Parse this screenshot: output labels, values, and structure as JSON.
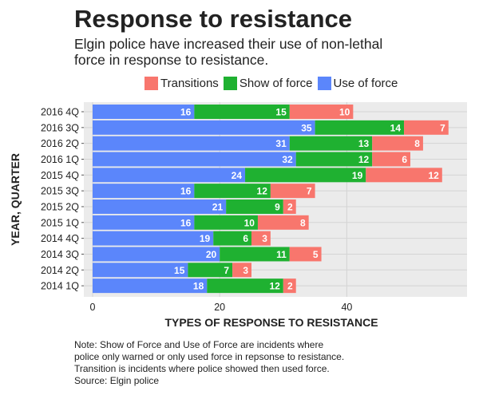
{
  "header": {
    "title": "Response to resistance",
    "subtitle": "Elgin police have increased their use of non-lethal force in response to resistance."
  },
  "colors": {
    "transitions": "#F8766D",
    "show_of_force": "#1FB131",
    "use_of_force": "#5B86FB",
    "panel_bg": "#EBEBEB",
    "grid": "#D4D4D4"
  },
  "legend": {
    "items": [
      {
        "label": "Transitions",
        "color": "#F8766D"
      },
      {
        "label": "Show of force",
        "color": "#1FB131"
      },
      {
        "label": "Use of force",
        "color": "#5B86FB"
      }
    ]
  },
  "note": {
    "lines": [
      "Note: Show of Force and Use of Force are incidents where",
      "police only warned or only used force in repsonse to resistance.",
      "Transition is incidents where police showed then used force.",
      "Source: Elgin police"
    ]
  },
  "chart_data": {
    "type": "bar",
    "orientation": "horizontal",
    "stacked": true,
    "title": "Response to resistance",
    "xlabel": "TYPES OF RESPONSE TO RESISTANCE",
    "ylabel": "YEAR, QUARTER",
    "xlim": [
      0,
      58
    ],
    "xticks": [
      0,
      20,
      40
    ],
    "grid": true,
    "legend_position": "top",
    "categories": [
      "2016 4Q",
      "2016 3Q",
      "2016 2Q",
      "2016 1Q",
      "2015 4Q",
      "2015 3Q",
      "2015 2Q",
      "2015 1Q",
      "2014 4Q",
      "2014 3Q",
      "2014 2Q",
      "2014 1Q"
    ],
    "series": [
      {
        "name": "Use of force",
        "color": "#5B86FB",
        "values": [
          16,
          35,
          31,
          32,
          24,
          16,
          21,
          16,
          19,
          20,
          15,
          18
        ]
      },
      {
        "name": "Show of force",
        "color": "#1FB131",
        "values": [
          15,
          14,
          13,
          12,
          19,
          12,
          9,
          10,
          6,
          11,
          7,
          12
        ]
      },
      {
        "name": "Transitions",
        "color": "#F8766D",
        "values": [
          10,
          7,
          8,
          6,
          12,
          7,
          2,
          8,
          3,
          5,
          3,
          2
        ]
      }
    ]
  }
}
